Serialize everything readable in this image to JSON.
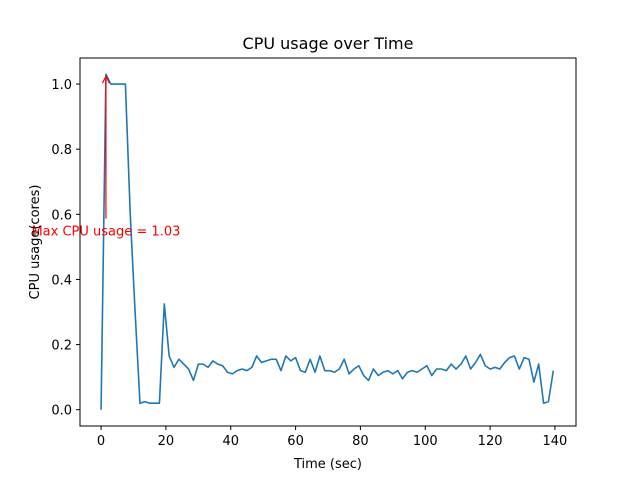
{
  "chart_data": {
    "type": "line",
    "title": "CPU usage over Time",
    "xlabel": "Time (sec)",
    "ylabel": "CPU usage(cores)",
    "xlim": [
      -6.5,
      146.5
    ],
    "ylim": [
      -0.05,
      1.08
    ],
    "xticks": [
      0,
      20,
      40,
      60,
      80,
      100,
      120,
      140
    ],
    "yticks": [
      0.0,
      0.2,
      0.4,
      0.6,
      0.8,
      1.0
    ],
    "xtick_labels": [
      "0",
      "20",
      "40",
      "60",
      "80",
      "100",
      "120",
      "140"
    ],
    "ytick_labels": [
      "0.0",
      "0.2",
      "0.4",
      "0.6",
      "0.8",
      "1.0"
    ],
    "grid": false,
    "series_color": "#1f77b4",
    "series": [
      {
        "x": [
          0,
          1.5,
          3,
          4.5,
          6,
          7.5,
          9,
          10.5,
          12,
          13.5,
          15,
          16.5,
          18,
          19.5,
          21,
          22.5,
          24,
          25.5,
          27,
          28.5,
          30,
          31.5,
          33,
          34.5,
          36,
          37.5,
          39,
          40.5,
          42,
          43.5,
          45,
          46.5,
          48,
          49.5,
          51,
          52.5,
          54,
          55.5,
          57,
          58.5,
          60,
          61.5,
          63,
          64.5,
          66,
          67.5,
          69,
          70.5,
          72,
          73.5,
          75,
          76.5,
          78,
          79.5,
          81,
          82.5,
          84,
          85.5,
          87,
          88.5,
          90,
          91.5,
          93,
          94.5,
          96,
          97.5,
          99,
          100.5,
          102,
          103.5,
          105,
          106.5,
          108,
          109.5,
          111,
          112.5,
          114,
          115.5,
          117,
          118.5,
          120,
          121.5,
          123,
          124.5,
          126,
          127.5,
          129,
          130.5,
          132,
          133.5,
          135,
          136.5,
          138,
          139.5
        ],
        "y": [
          0.0,
          1.03,
          1.0,
          1.0,
          1.0,
          1.0,
          0.6,
          0.3,
          0.02,
          0.025,
          0.02,
          0.02,
          0.02,
          0.325,
          0.165,
          0.13,
          0.155,
          0.14,
          0.125,
          0.09,
          0.14,
          0.14,
          0.13,
          0.15,
          0.14,
          0.135,
          0.115,
          0.11,
          0.12,
          0.125,
          0.12,
          0.13,
          0.165,
          0.145,
          0.15,
          0.155,
          0.155,
          0.12,
          0.165,
          0.15,
          0.16,
          0.12,
          0.115,
          0.155,
          0.115,
          0.165,
          0.12,
          0.12,
          0.115,
          0.125,
          0.155,
          0.11,
          0.125,
          0.135,
          0.105,
          0.09,
          0.125,
          0.105,
          0.115,
          0.12,
          0.11,
          0.12,
          0.095,
          0.115,
          0.12,
          0.115,
          0.125,
          0.135,
          0.105,
          0.125,
          0.125,
          0.12,
          0.14,
          0.125,
          0.14,
          0.165,
          0.125,
          0.145,
          0.17,
          0.135,
          0.125,
          0.13,
          0.125,
          0.145,
          0.16,
          0.165,
          0.125,
          0.16,
          0.155,
          0.085,
          0.14,
          0.02,
          0.025,
          0.12
        ]
      }
    ],
    "annotation": {
      "text": "Max CPU usage = 1.03",
      "color": "#ff0000",
      "point": [
        1.5,
        1.03
      ],
      "text_pos": [
        1.5,
        0.55
      ]
    }
  }
}
